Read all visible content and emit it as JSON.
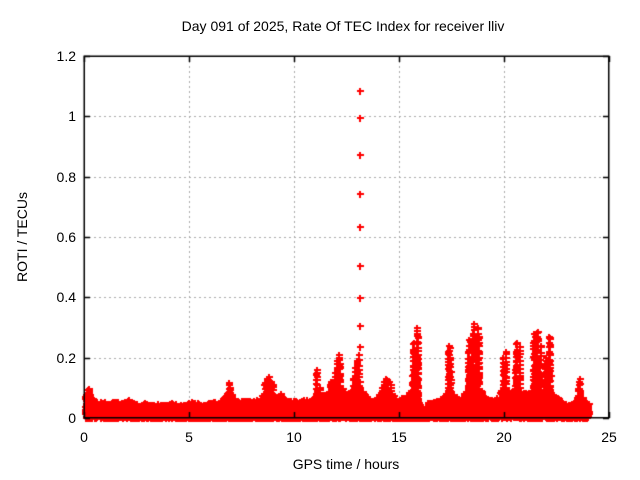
{
  "title": "Day 091 of 2025, Rate Of TEC Index for receiver lliv",
  "colors": {
    "marker": "#ff0000",
    "grid": "#aaaaaa",
    "axis": "#000000",
    "background": "#ffffff",
    "text": "#000000"
  },
  "chart_data": {
    "type": "scatter",
    "title": "Day 091 of 2025, Rate Of TEC Index for receiver lliv",
    "xlabel": "GPS time / hours",
    "ylabel": "ROTI / TECUs",
    "xlim": [
      0,
      25
    ],
    "ylim": [
      0,
      1.2
    ],
    "xticks": {
      "values": [
        0,
        5,
        10,
        15,
        20,
        25
      ],
      "labels": [
        "0",
        "5",
        "10",
        "15",
        "20",
        "25"
      ]
    },
    "yticks": {
      "values": [
        0,
        0.2,
        0.4,
        0.6,
        0.8,
        1.0,
        1.2
      ],
      "labels": [
        "0",
        "0.2",
        "0.4",
        "0.6",
        "0.8",
        "1",
        "1.2"
      ]
    },
    "grid": true,
    "legend": "none",
    "marker": "plus",
    "marker_color": "#ff0000",
    "time_range_hours": [
      0.05,
      24.05
    ],
    "baseline_envelope": [
      [
        0.0,
        0.055
      ],
      [
        0.2,
        0.1
      ],
      [
        0.35,
        0.07
      ],
      [
        0.6,
        0.05
      ],
      [
        0.9,
        0.06
      ],
      [
        1.2,
        0.05
      ],
      [
        1.5,
        0.055
      ],
      [
        1.8,
        0.05
      ],
      [
        2.1,
        0.06
      ],
      [
        2.4,
        0.05
      ],
      [
        2.7,
        0.045
      ],
      [
        3.0,
        0.05
      ],
      [
        3.3,
        0.045
      ],
      [
        3.6,
        0.05
      ],
      [
        3.9,
        0.042
      ],
      [
        4.2,
        0.05
      ],
      [
        4.5,
        0.045
      ],
      [
        4.8,
        0.042
      ],
      [
        5.1,
        0.055
      ],
      [
        5.4,
        0.05
      ],
      [
        5.7,
        0.045
      ],
      [
        6.0,
        0.05
      ],
      [
        6.3,
        0.055
      ],
      [
        6.6,
        0.06
      ],
      [
        6.9,
        0.09
      ],
      [
        7.1,
        0.07
      ],
      [
        7.4,
        0.055
      ],
      [
        7.7,
        0.06
      ],
      [
        8.0,
        0.055
      ],
      [
        8.3,
        0.06
      ],
      [
        8.6,
        0.08
      ],
      [
        8.8,
        0.09
      ],
      [
        9.0,
        0.08
      ],
      [
        9.2,
        0.07
      ],
      [
        9.4,
        0.075
      ],
      [
        9.6,
        0.055
      ],
      [
        9.9,
        0.06
      ],
      [
        10.2,
        0.055
      ],
      [
        10.5,
        0.06
      ],
      [
        10.8,
        0.06
      ],
      [
        11.0,
        0.08
      ],
      [
        11.1,
        0.09
      ],
      [
        11.3,
        0.07
      ],
      [
        11.5,
        0.08
      ],
      [
        11.75,
        0.09
      ],
      [
        11.9,
        0.09
      ],
      [
        12.05,
        0.09
      ],
      [
        12.2,
        0.09
      ],
      [
        12.35,
        0.1
      ],
      [
        12.5,
        0.08
      ],
      [
        12.7,
        0.09
      ],
      [
        12.85,
        0.09
      ],
      [
        13.0,
        0.09
      ],
      [
        13.15,
        0.09
      ],
      [
        13.3,
        0.09
      ],
      [
        13.5,
        0.065
      ],
      [
        13.8,
        0.06
      ],
      [
        14.1,
        0.08
      ],
      [
        14.35,
        0.09
      ],
      [
        14.6,
        0.09
      ],
      [
        14.8,
        0.07
      ],
      [
        15.0,
        0.06
      ],
      [
        15.3,
        0.07
      ],
      [
        15.55,
        0.09
      ],
      [
        15.7,
        0.09
      ],
      [
        15.85,
        0.09
      ],
      [
        15.95,
        0.06
      ],
      [
        16.1,
        0.02
      ],
      [
        16.25,
        0.03
      ],
      [
        16.4,
        0.05
      ],
      [
        16.7,
        0.055
      ],
      [
        17.0,
        0.06
      ],
      [
        17.2,
        0.08
      ],
      [
        17.4,
        0.09
      ],
      [
        17.55,
        0.09
      ],
      [
        17.8,
        0.06
      ],
      [
        18.0,
        0.07
      ],
      [
        18.2,
        0.09
      ],
      [
        18.35,
        0.09
      ],
      [
        18.55,
        0.09
      ],
      [
        18.75,
        0.09
      ],
      [
        18.95,
        0.09
      ],
      [
        19.1,
        0.07
      ],
      [
        19.3,
        0.06
      ],
      [
        19.6,
        0.06
      ],
      [
        19.85,
        0.09
      ],
      [
        19.95,
        0.09
      ],
      [
        20.1,
        0.09
      ],
      [
        20.25,
        0.09
      ],
      [
        20.45,
        0.09
      ],
      [
        20.6,
        0.09
      ],
      [
        20.75,
        0.09
      ],
      [
        20.9,
        0.08
      ],
      [
        21.1,
        0.09
      ],
      [
        21.3,
        0.09
      ],
      [
        21.45,
        0.09
      ],
      [
        21.6,
        0.09
      ],
      [
        21.75,
        0.09
      ],
      [
        21.9,
        0.09
      ],
      [
        22.05,
        0.09
      ],
      [
        22.2,
        0.09
      ],
      [
        22.35,
        0.08
      ],
      [
        22.5,
        0.07
      ],
      [
        22.7,
        0.055
      ],
      [
        22.9,
        0.05
      ],
      [
        23.1,
        0.045
      ],
      [
        23.3,
        0.05
      ],
      [
        23.5,
        0.07
      ],
      [
        23.6,
        0.08
      ],
      [
        23.75,
        0.07
      ],
      [
        23.9,
        0.06
      ],
      [
        24.05,
        0.05
      ]
    ],
    "spike_columns": [
      [
        0.25,
        0.095
      ],
      [
        6.9,
        0.115
      ],
      [
        6.95,
        0.1
      ],
      [
        8.6,
        0.115
      ],
      [
        8.7,
        0.13
      ],
      [
        8.8,
        0.135
      ],
      [
        8.9,
        0.12
      ],
      [
        9.0,
        0.11
      ],
      [
        9.4,
        0.08
      ],
      [
        11.05,
        0.145
      ],
      [
        11.1,
        0.16
      ],
      [
        11.25,
        0.1
      ],
      [
        11.7,
        0.11
      ],
      [
        11.75,
        0.12
      ],
      [
        11.95,
        0.15
      ],
      [
        12.05,
        0.19
      ],
      [
        12.15,
        0.21
      ],
      [
        12.2,
        0.18
      ],
      [
        12.8,
        0.13
      ],
      [
        12.9,
        0.165
      ],
      [
        13.0,
        0.19
      ],
      [
        13.1,
        0.21
      ],
      [
        14.2,
        0.1
      ],
      [
        14.3,
        0.12
      ],
      [
        14.4,
        0.13
      ],
      [
        14.5,
        0.12
      ],
      [
        14.6,
        0.11
      ],
      [
        15.65,
        0.22
      ],
      [
        15.7,
        0.25
      ],
      [
        15.85,
        0.3
      ],
      [
        15.9,
        0.27
      ],
      [
        17.35,
        0.22
      ],
      [
        17.4,
        0.24
      ],
      [
        17.45,
        0.2
      ],
      [
        18.3,
        0.22
      ],
      [
        18.35,
        0.26
      ],
      [
        18.5,
        0.28
      ],
      [
        18.55,
        0.31
      ],
      [
        18.65,
        0.25
      ],
      [
        18.75,
        0.3
      ],
      [
        18.8,
        0.27
      ],
      [
        19.95,
        0.2
      ],
      [
        20.0,
        0.18
      ],
      [
        20.1,
        0.22
      ],
      [
        20.55,
        0.22
      ],
      [
        20.6,
        0.25
      ],
      [
        20.75,
        0.235
      ],
      [
        21.4,
        0.25
      ],
      [
        21.45,
        0.28
      ],
      [
        21.55,
        0.27
      ],
      [
        21.6,
        0.285
      ],
      [
        21.75,
        0.24
      ],
      [
        21.95,
        0.18
      ],
      [
        22.0,
        0.2
      ],
      [
        22.15,
        0.27
      ],
      [
        22.2,
        0.265
      ],
      [
        23.55,
        0.12
      ],
      [
        23.6,
        0.13
      ]
    ],
    "outlier_column": {
      "t": 13.15,
      "values": [
        0.235,
        0.305,
        0.398,
        0.504,
        0.633,
        0.742,
        0.872,
        0.994,
        1.084
      ]
    }
  }
}
